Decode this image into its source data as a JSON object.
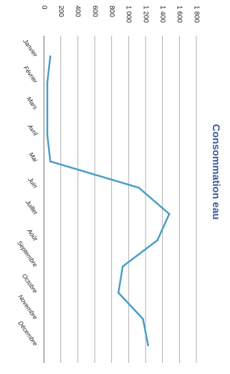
{
  "chart_data": {
    "type": "line",
    "title": "Consommation eau",
    "categories": [
      "Janvier",
      "Février",
      "Mars",
      "Avril",
      "Mai",
      "Juin",
      "Juillet",
      "Août",
      "Septembre",
      "Octobre",
      "Novembre",
      "Décembre"
    ],
    "series": [
      {
        "values": [
          75,
          40,
          40,
          40,
          75,
          1120,
          1480,
          1340,
          930,
          880,
          1170,
          1230
        ],
        "color": "#4a9ec8"
      }
    ],
    "yticks": [
      0,
      200,
      400,
      600,
      800,
      1000,
      1200,
      1400,
      1600,
      1800
    ],
    "ytick_labels": [
      "0",
      "200",
      "400",
      "600",
      "800",
      "1 000",
      "1 200",
      "1 400",
      "1 600",
      "1 800"
    ],
    "ylim": [
      0,
      1800
    ],
    "grid": true,
    "legend": "none",
    "orientation": "rotated 90° clockwise (scanned page)",
    "title_color": "#3d5a99",
    "grid_color": "#9a9a9a"
  }
}
